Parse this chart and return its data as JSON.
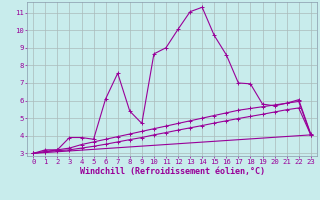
{
  "xlabel": "Windchill (Refroidissement éolien,°C)",
  "bg_color": "#c8ecec",
  "grid_color": "#aabbbb",
  "line_color": "#990099",
  "xlim": [
    -0.5,
    23.5
  ],
  "ylim": [
    2.85,
    11.6
  ],
  "xticks": [
    0,
    1,
    2,
    3,
    4,
    5,
    6,
    7,
    8,
    9,
    10,
    11,
    12,
    13,
    14,
    15,
    16,
    17,
    18,
    19,
    20,
    21,
    22,
    23
  ],
  "yticks": [
    3,
    4,
    5,
    6,
    7,
    8,
    9,
    10,
    11
  ],
  "curve1_x": [
    0,
    1,
    2,
    3,
    4,
    5,
    6,
    7,
    8,
    9,
    10,
    11,
    12,
    13,
    14,
    15,
    16,
    17,
    18,
    19,
    20,
    21,
    22,
    23
  ],
  "curve1_y": [
    3.0,
    3.2,
    3.2,
    3.9,
    3.9,
    3.8,
    6.1,
    7.55,
    5.4,
    4.7,
    8.65,
    9.0,
    10.05,
    11.05,
    11.3,
    9.7,
    8.6,
    7.0,
    6.95,
    5.8,
    5.7,
    5.85,
    6.05,
    4.1
  ],
  "curve2_x": [
    0,
    1,
    2,
    3,
    4,
    5,
    6,
    7,
    8,
    9,
    10,
    11,
    12,
    13,
    14,
    15,
    16,
    17,
    18,
    19,
    20,
    21,
    22,
    23
  ],
  "curve2_y": [
    3.0,
    3.1,
    3.2,
    3.3,
    3.5,
    3.65,
    3.8,
    3.95,
    4.1,
    4.25,
    4.4,
    4.55,
    4.7,
    4.85,
    5.0,
    5.15,
    5.3,
    5.45,
    5.55,
    5.65,
    5.75,
    5.85,
    5.95,
    4.05
  ],
  "curve3_x": [
    0,
    1,
    2,
    3,
    4,
    5,
    6,
    7,
    8,
    9,
    10,
    11,
    12,
    13,
    14,
    15,
    16,
    17,
    18,
    19,
    20,
    21,
    22,
    23
  ],
  "curve3_y": [
    3.0,
    3.1,
    3.15,
    3.2,
    3.3,
    3.4,
    3.52,
    3.65,
    3.78,
    3.9,
    4.05,
    4.18,
    4.32,
    4.45,
    4.58,
    4.72,
    4.85,
    4.98,
    5.1,
    5.22,
    5.35,
    5.48,
    5.58,
    4.05
  ],
  "curve4_x": [
    0,
    23
  ],
  "curve4_y": [
    3.0,
    4.05
  ],
  "tick_fontsize": 5.2,
  "xlabel_fontsize": 6.0
}
